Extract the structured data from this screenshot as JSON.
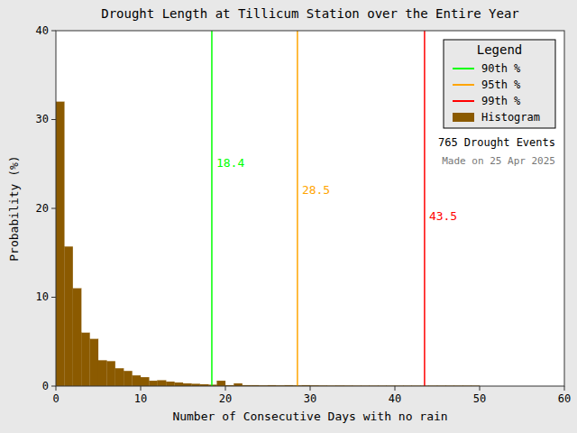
{
  "chart_data": {
    "type": "histogram",
    "title": "Drought Length at Tillicum Station over the Entire Year",
    "xlabel": "Number of Consecutive Days with no rain",
    "ylabel": "Probability (%)",
    "name": "Histogram",
    "color": "#8B5A00",
    "bins": [
      0,
      1,
      2,
      3,
      4,
      5,
      6,
      7,
      8,
      9,
      10,
      11,
      12,
      13,
      14,
      15,
      16,
      17,
      18,
      19,
      20,
      21,
      22,
      23,
      24,
      25,
      26,
      27,
      28,
      29,
      30,
      31,
      32,
      33,
      34,
      35,
      36,
      37,
      38,
      39,
      40,
      41,
      42,
      43,
      44,
      45,
      46,
      47,
      48,
      49,
      50,
      51,
      52,
      53,
      54,
      55,
      56,
      57,
      58,
      59,
      60
    ],
    "values": [
      32.0,
      15.7,
      11.0,
      6.0,
      5.3,
      2.9,
      2.8,
      2.0,
      1.7,
      1.2,
      1.0,
      0.6,
      0.65,
      0.5,
      0.4,
      0.3,
      0.25,
      0.2,
      0.15,
      0.6,
      0.1,
      0.3,
      0.1,
      0.1,
      0.08,
      0.1,
      0.08,
      0.1,
      0.08,
      0.1,
      0.08,
      0.06,
      0.05,
      0.06,
      0.05,
      0.04,
      0.04,
      0.04,
      0.04,
      0.04,
      0.04,
      0.04,
      0.04,
      0.04,
      0.04,
      0.04,
      0.04,
      0.04,
      0.04,
      0.04,
      0.0,
      0.0,
      0.0,
      0.0,
      0.0,
      0.0,
      0.0,
      0.0,
      0.0,
      0.0
    ],
    "series": [
      {
        "name": "90th %",
        "type": "vline",
        "color": "#00FF00",
        "x": 18.4,
        "label_y": 25
      },
      {
        "name": "95th %",
        "type": "vline",
        "color": "#FFA500",
        "x": 28.5,
        "label_y": 22
      },
      {
        "name": "99th %",
        "type": "vline",
        "color": "#FF0000",
        "x": 43.5,
        "label_y": 19
      }
    ],
    "xlim": [
      0,
      60
    ],
    "ylim": [
      0,
      40
    ],
    "xticks": [
      0,
      10,
      20,
      30,
      40,
      50,
      60
    ],
    "yticks": [
      0,
      10,
      20,
      30,
      40
    ],
    "grid": false,
    "legend": "upper right",
    "legend_title": "Legend",
    "annotations": [
      "765 Drought Events",
      "Made on 25 Apr 2025"
    ]
  }
}
